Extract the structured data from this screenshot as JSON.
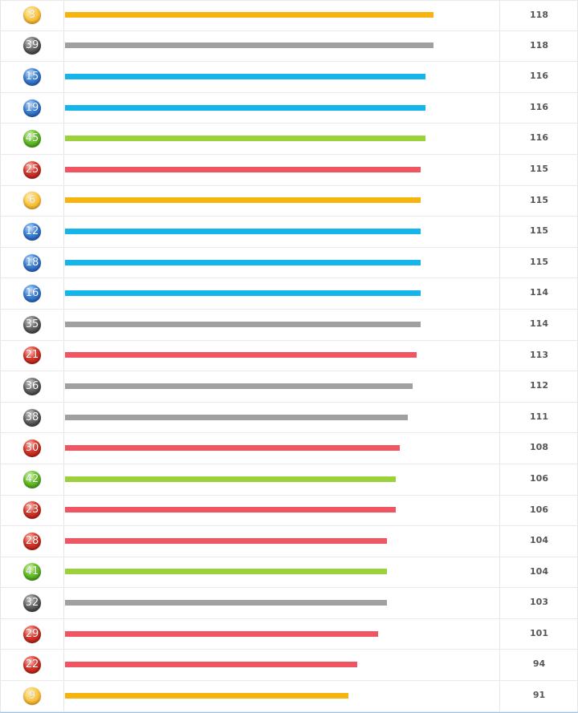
{
  "colors": {
    "yellow": "#f8b40e",
    "gray": "#a0a0a0",
    "blue": "#13b5ea",
    "green": "#9bd13a",
    "red": "#ef5662"
  },
  "rows": [
    {
      "ball": "3",
      "color": "yellow",
      "count": "118",
      "bar_fraction": 0.845
    },
    {
      "ball": "39",
      "color": "gray",
      "count": "118",
      "bar_fraction": 0.845
    },
    {
      "ball": "15",
      "color": "blue",
      "count": "116",
      "bar_fraction": 0.826
    },
    {
      "ball": "19",
      "color": "blue",
      "count": "116",
      "bar_fraction": 0.826
    },
    {
      "ball": "45",
      "color": "green",
      "count": "116",
      "bar_fraction": 0.826
    },
    {
      "ball": "25",
      "color": "red",
      "count": "115",
      "bar_fraction": 0.816
    },
    {
      "ball": "6",
      "color": "yellow",
      "count": "115",
      "bar_fraction": 0.816
    },
    {
      "ball": "12",
      "color": "blue",
      "count": "115",
      "bar_fraction": 0.816
    },
    {
      "ball": "18",
      "color": "blue",
      "count": "115",
      "bar_fraction": 0.816
    },
    {
      "ball": "16",
      "color": "blue",
      "count": "114",
      "bar_fraction": 0.816
    },
    {
      "ball": "35",
      "color": "gray",
      "count": "114",
      "bar_fraction": 0.816
    },
    {
      "ball": "21",
      "color": "red",
      "count": "113",
      "bar_fraction": 0.806
    },
    {
      "ball": "36",
      "color": "gray",
      "count": "112",
      "bar_fraction": 0.797
    },
    {
      "ball": "38",
      "color": "gray",
      "count": "111",
      "bar_fraction": 0.787
    },
    {
      "ball": "30",
      "color": "red",
      "count": "108",
      "bar_fraction": 0.768
    },
    {
      "ball": "42",
      "color": "green",
      "count": "106",
      "bar_fraction": 0.758
    },
    {
      "ball": "23",
      "color": "red",
      "count": "106",
      "bar_fraction": 0.758
    },
    {
      "ball": "28",
      "color": "red",
      "count": "104",
      "bar_fraction": 0.739
    },
    {
      "ball": "41",
      "color": "green",
      "count": "104",
      "bar_fraction": 0.739
    },
    {
      "ball": "32",
      "color": "gray",
      "count": "103",
      "bar_fraction": 0.739
    },
    {
      "ball": "29",
      "color": "red",
      "count": "101",
      "bar_fraction": 0.719
    },
    {
      "ball": "22",
      "color": "red",
      "count": "94",
      "bar_fraction": 0.67
    },
    {
      "ball": "9",
      "color": "yellow",
      "count": "91",
      "bar_fraction": 0.65
    }
  ]
}
